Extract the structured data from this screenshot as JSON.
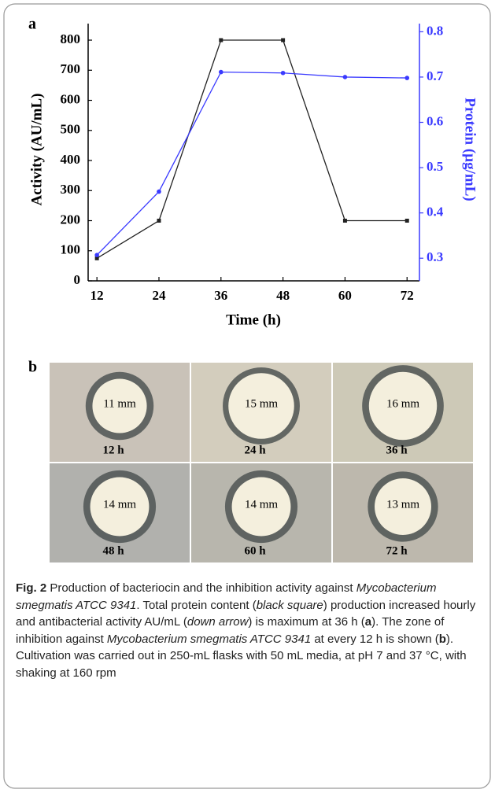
{
  "chart_data": {
    "type": "line",
    "x_label": "Time (h)",
    "y_label": "Activity (AU/mL)",
    "y2_label": "Protein (µg/mL)",
    "x": [
      12,
      24,
      36,
      48,
      60,
      72
    ],
    "series": [
      {
        "color": "#222222",
        "marker": "square",
        "values": [
          75,
          200,
          800,
          800,
          200,
          200
        ]
      },
      {
        "color": "#3a3aff",
        "marker": "circle",
        "axis": "y2",
        "values": [
          0.307,
          0.447,
          0.711,
          0.709,
          0.7,
          0.698
        ]
      }
    ],
    "xlim": [
      10.3,
      74.4
    ],
    "xticks": [
      12,
      24,
      36,
      48,
      60,
      72
    ],
    "ylim": [
      0,
      855
    ],
    "yticks": [
      0,
      100,
      200,
      300,
      400,
      500,
      600,
      700,
      800
    ],
    "y2lim": [
      0.25,
      0.818
    ],
    "y2ticks": [
      0.3,
      0.4,
      0.5,
      0.6,
      0.7,
      0.8
    ],
    "y2_color": "#3a3aff"
  },
  "panel_a": {
    "label": "a"
  },
  "panel_b": {
    "label": "b",
    "images": [
      {
        "zone": "11 mm",
        "time": "12 h"
      },
      {
        "zone": "15 mm",
        "time": "24 h"
      },
      {
        "zone": "16 mm",
        "time": "36 h"
      },
      {
        "zone": "14 mm",
        "time": "48 h"
      },
      {
        "zone": "14 mm",
        "time": "60 h"
      },
      {
        "zone": "13 mm",
        "time": "72 h"
      }
    ]
  },
  "caption": {
    "label": "Fig. 2",
    "segments": [
      " Production of bacteriocin and the inhibition activity against ",
      "Mycobacterium smegmatis ATCC 9341",
      ". Total protein content (",
      "black square",
      ") production increased hourly and antibacterial activity AU/mL (",
      "down arrow",
      ") is maximum at 36 h (",
      "a",
      "). The zone of inhibition against ",
      "Mycobacterium smegmatis ATCC 9341",
      " at every 12 h is shown (",
      "b",
      "). Cultivation was carried out in 250-mL flasks with 50 mL media, at pH 7 and 37 °C, with shaking at 160 rpm"
    ]
  }
}
